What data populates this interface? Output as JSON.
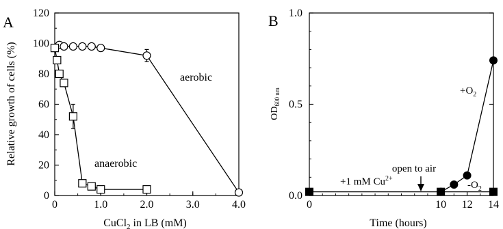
{
  "chart_data": [
    {
      "panel": "A",
      "type": "line",
      "xlabel": "CuCl",
      "xlabel_sub": "2",
      "xlabel_tail": " in LB (mM)",
      "ylabel": "Relative growth of cells (%)",
      "xlim": [
        0,
        4.0
      ],
      "ylim": [
        0,
        120
      ],
      "x_ticks": [
        0,
        1.0,
        2.0,
        3.0,
        4.0
      ],
      "x_tick_labels": [
        "0",
        "1.0",
        "2.0",
        "3.0",
        "4.0"
      ],
      "y_ticks": [
        0,
        20,
        40,
        60,
        80,
        100,
        120
      ],
      "y_tick_labels": [
        "0",
        "20",
        "40",
        "60",
        "80",
        "100",
        "120"
      ],
      "grid": false,
      "series": [
        {
          "name": "aerobic",
          "marker": "circle",
          "x": [
            0,
            0.1,
            0.2,
            0.4,
            0.6,
            0.8,
            1.0,
            2.0,
            4.0
          ],
          "y": [
            97,
            99,
            98,
            98,
            98,
            98,
            97,
            92,
            2
          ],
          "err": [
            0,
            0,
            0,
            0,
            0,
            0,
            0,
            4,
            0
          ]
        },
        {
          "name": "anaerobic",
          "marker": "square",
          "x": [
            0,
            0.05,
            0.1,
            0.2,
            0.4,
            0.6,
            0.8,
            1.0,
            2.0
          ],
          "y": [
            97,
            89,
            80,
            74,
            52,
            8,
            6,
            4,
            4
          ],
          "err": [
            0,
            0,
            0,
            0,
            8,
            0,
            0,
            0,
            0
          ]
        }
      ]
    },
    {
      "panel": "B",
      "type": "line",
      "xlabel": "Time (hours)",
      "ylabel": "OD",
      "ylabel_sub": "600 nm",
      "xlim": [
        0,
        14
      ],
      "ylim": [
        0,
        1.0
      ],
      "x_ticks": [
        0,
        10,
        12,
        14
      ],
      "x_tick_labels": [
        "0",
        "10",
        "12",
        "14"
      ],
      "y_ticks": [
        0,
        0.5,
        1.0
      ],
      "y_tick_labels": [
        "0.0",
        "0.5",
        "1.0"
      ],
      "grid": false,
      "series": [
        {
          "name": "+O2",
          "marker": "filled-circle",
          "x": [
            10,
            11,
            12,
            14
          ],
          "y": [
            0.02,
            0.06,
            0.11,
            0.74
          ]
        },
        {
          "name": "-O2",
          "marker": "filled-square",
          "x": [
            0,
            10,
            14
          ],
          "y": [
            0.02,
            0.02,
            0.02
          ]
        }
      ],
      "annotations": {
        "cu_label": "+1 mM Cu",
        "cu_sup": "2+",
        "open_label": "open to air",
        "plus_o2": "+O",
        "minus_o2": "-O",
        "o2_sub": "2"
      }
    }
  ],
  "panel_labels": {
    "a": "A",
    "b": "B"
  }
}
